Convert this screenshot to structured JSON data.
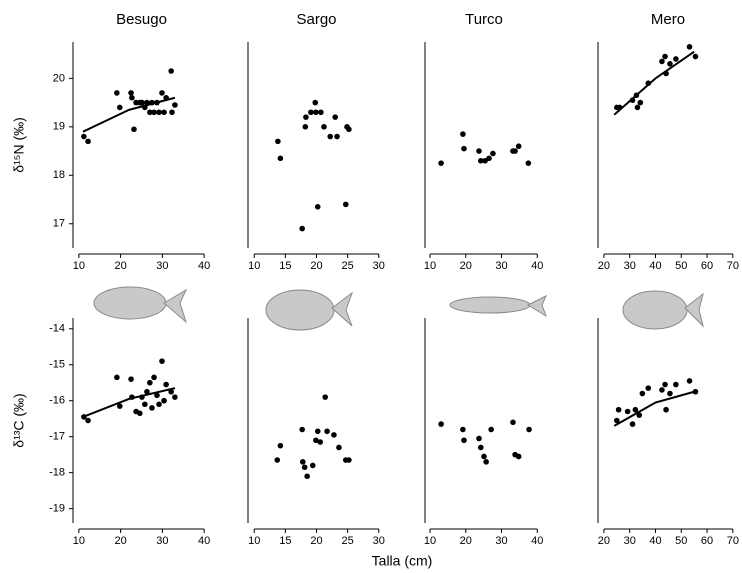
{
  "xlabel": "Talla (cm)",
  "chart_data": [
    {
      "type": "scatter",
      "title": "Besugo",
      "ylabel": "δ¹⁵N (‰)",
      "color": "#000000",
      "x": [
        11.2,
        12.2,
        19.1,
        19.8,
        22.5,
        22.7,
        23.2,
        23.7,
        24.6,
        25.1,
        25.8,
        26.3,
        27.0,
        27.5,
        28.0,
        28.7,
        29.2,
        29.9,
        30.4,
        30.9,
        32.1,
        32.3,
        33.0
      ],
      "y": [
        18.8,
        18.7,
        19.7,
        19.4,
        19.7,
        19.6,
        18.95,
        19.5,
        19.5,
        19.5,
        19.4,
        19.5,
        19.3,
        19.5,
        19.3,
        19.5,
        19.3,
        19.7,
        19.3,
        19.6,
        20.15,
        19.3,
        19.45
      ],
      "fit": {
        "x": [
          11,
          22,
          33
        ],
        "y": [
          18.9,
          19.35,
          19.6
        ]
      },
      "xlim": [
        8.6,
        41.4
      ],
      "xticks": [
        10,
        20,
        30,
        40
      ],
      "ylim": [
        16.5,
        20.75
      ],
      "yticks": [
        17,
        18,
        19,
        20
      ]
    },
    {
      "type": "scatter",
      "title": "Sargo",
      "color": "#000000",
      "x": [
        13.8,
        14.2,
        17.7,
        18.2,
        18.3,
        19.1,
        19.8,
        19.9,
        20.2,
        20.7,
        21.2,
        22.2,
        23.0,
        23.3,
        24.7,
        24.9,
        25.2
      ],
      "y": [
        18.7,
        18.35,
        16.9,
        19.0,
        19.2,
        19.3,
        19.5,
        19.3,
        17.35,
        19.3,
        19.0,
        18.8,
        19.2,
        18.8,
        17.4,
        19.0,
        18.95
      ],
      "xlim": [
        9.0,
        31.0
      ],
      "xticks": [
        10,
        15,
        20,
        25,
        30
      ],
      "ylim": [
        16.5,
        20.75
      ]
    },
    {
      "type": "scatter",
      "title": "Turco",
      "color": "#000000",
      "x": [
        13.1,
        19.2,
        19.5,
        23.7,
        24.2,
        25.4,
        26.5,
        27.6,
        33.2,
        33.8,
        34.8,
        37.5
      ],
      "y": [
        18.25,
        18.85,
        18.55,
        18.5,
        18.3,
        18.3,
        18.35,
        18.45,
        18.5,
        18.5,
        18.6,
        18.25
      ],
      "xlim": [
        8.6,
        41.6
      ],
      "xticks": [
        10,
        20,
        30,
        40
      ],
      "ylim": [
        16.5,
        20.75
      ]
    },
    {
      "type": "scatter",
      "title": "Mero",
      "color": "#000000",
      "x": [
        25.0,
        26.1,
        31.1,
        32.6,
        33.0,
        34.1,
        37.2,
        42.5,
        43.7,
        44.1,
        45.6,
        47.9,
        53.2,
        55.5
      ],
      "y": [
        19.4,
        19.4,
        19.55,
        19.65,
        19.4,
        19.5,
        19.9,
        20.35,
        20.45,
        20.1,
        20.3,
        20.4,
        20.65,
        20.45
      ],
      "fit": {
        "x": [
          24,
          40,
          55
        ],
        "y": [
          19.25,
          20.0,
          20.55
        ]
      },
      "xlim": [
        17.7,
        72
      ],
      "xticks": [
        20,
        30,
        40,
        50,
        60,
        70
      ],
      "ylim": [
        16.5,
        20.75
      ]
    },
    {
      "type": "scatter",
      "ylabel": "δ¹³C (‰)",
      "color": "#000000",
      "x": [
        11.2,
        12.2,
        19.1,
        19.8,
        22.5,
        22.7,
        23.7,
        24.6,
        25.1,
        25.8,
        26.3,
        27.0,
        27.5,
        28.0,
        28.7,
        29.2,
        29.9,
        30.4,
        30.9,
        32.1,
        33.0
      ],
      "y": [
        -16.45,
        -16.55,
        -15.35,
        -16.15,
        -15.4,
        -15.9,
        -16.3,
        -16.35,
        -15.9,
        -16.1,
        -15.75,
        -15.5,
        -16.2,
        -15.35,
        -15.85,
        -16.1,
        -14.9,
        -16.0,
        -15.55,
        -15.75,
        -15.9
      ],
      "fit": {
        "x": [
          11,
          22,
          33
        ],
        "y": [
          -16.45,
          -15.95,
          -15.65
        ]
      },
      "xlim": [
        8.6,
        41.4
      ],
      "xticks": [
        10,
        20,
        30,
        40
      ],
      "ylim": [
        -19.4,
        -13.7
      ],
      "yticks": [
        -19,
        -18,
        -17,
        -16,
        -15,
        -14
      ]
    },
    {
      "type": "scatter",
      "color": "#000000",
      "x": [
        13.7,
        14.2,
        17.7,
        17.8,
        18.1,
        18.5,
        19.4,
        19.9,
        20.2,
        20.6,
        21.4,
        21.7,
        22.8,
        23.6,
        24.7,
        25.2
      ],
      "y": [
        -17.65,
        -17.25,
        -16.8,
        -17.7,
        -17.85,
        -18.1,
        -17.8,
        -17.1,
        -16.85,
        -17.15,
        -15.9,
        -16.85,
        -16.95,
        -17.3,
        -17.65,
        -17.65
      ],
      "xlim": [
        9.0,
        31.0
      ],
      "xticks": [
        10,
        15,
        20,
        25,
        30
      ],
      "ylim": [
        -19.4,
        -13.7
      ]
    },
    {
      "type": "scatter",
      "color": "#000000",
      "x": [
        13.1,
        19.2,
        19.5,
        23.7,
        24.2,
        25.1,
        25.7,
        27.1,
        33.2,
        33.8,
        34.8,
        37.7
      ],
      "y": [
        -16.65,
        -16.8,
        -17.1,
        -17.05,
        -17.3,
        -17.55,
        -17.7,
        -16.8,
        -16.6,
        -17.5,
        -17.55,
        -16.8
      ],
      "xlim": [
        8.6,
        41.6
      ],
      "xticks": [
        10,
        20,
        30,
        40
      ],
      "ylim": [
        -19.4,
        -13.7
      ]
    },
    {
      "type": "scatter",
      "color": "#000000",
      "x": [
        25.0,
        25.7,
        29.2,
        31.1,
        32.2,
        33.7,
        34.9,
        37.2,
        42.5,
        43.7,
        44.1,
        45.6,
        47.9,
        53.2,
        55.5
      ],
      "y": [
        -16.55,
        -16.25,
        -16.3,
        -16.65,
        -16.25,
        -16.4,
        -15.8,
        -15.65,
        -15.7,
        -15.55,
        -16.25,
        -15.8,
        -15.55,
        -15.45,
        -15.75
      ],
      "fit": {
        "x": [
          24,
          40,
          55
        ],
        "y": [
          -16.7,
          -16.05,
          -15.75
        ]
      },
      "xlim": [
        17.7,
        72
      ],
      "xticks": [
        20,
        30,
        40,
        50,
        60,
        70
      ],
      "ylim": [
        -19.4,
        -13.7
      ]
    }
  ]
}
